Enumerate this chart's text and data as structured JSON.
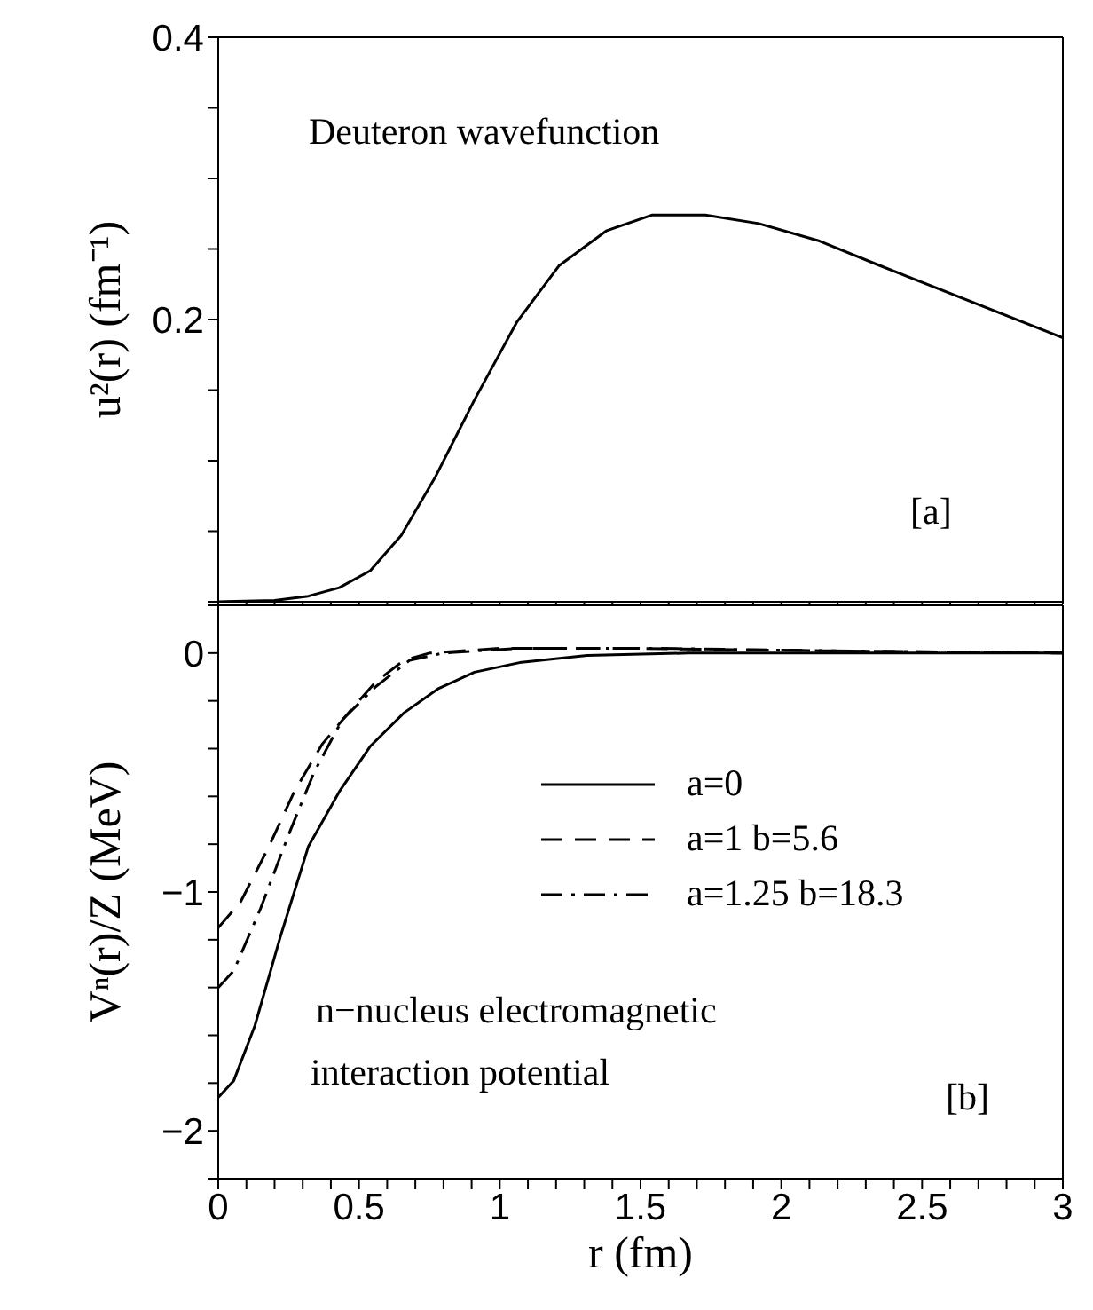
{
  "chart_data": [
    {
      "type": "line",
      "ylabel": "u²(r) (fm⁻¹)",
      "annotations": [
        "Deuteron wavefunction",
        "[a]"
      ],
      "xlim": [
        0,
        3
      ],
      "xticks": [
        0,
        {
          "value": 0.1,
          "label": null
        },
        {
          "value": 0.2,
          "label": null
        },
        {
          "value": 0.3,
          "label": null
        },
        {
          "value": 0.4,
          "label": null
        },
        0.5,
        {
          "value": 0.6,
          "label": null
        },
        {
          "value": 0.7,
          "label": null
        },
        {
          "value": 0.8,
          "label": null
        },
        {
          "value": 0.9,
          "label": null
        },
        1,
        {
          "value": 1.1,
          "label": null
        },
        {
          "value": 1.2,
          "label": null
        },
        {
          "value": 1.3,
          "label": null
        },
        {
          "value": 1.4,
          "label": null
        },
        1.5,
        {
          "value": 1.6,
          "label": null
        },
        {
          "value": 1.7,
          "label": null
        },
        {
          "value": 1.8,
          "label": null
        },
        {
          "value": 1.9,
          "label": null
        },
        2,
        {
          "value": 2.1,
          "label": null
        },
        {
          "value": 2.2,
          "label": null
        },
        {
          "value": 2.3,
          "label": null
        },
        {
          "value": 2.4,
          "label": null
        },
        2.5,
        {
          "value": 2.6,
          "label": null
        },
        {
          "value": 2.7,
          "label": null
        },
        {
          "value": 2.8,
          "label": null
        },
        {
          "value": 2.9,
          "label": null
        },
        3
      ],
      "ylim": [
        0,
        0.4
      ],
      "yticks": [
        {
          "value": 0,
          "label": null
        },
        {
          "value": 0.05,
          "label": null
        },
        {
          "value": 0.1,
          "label": null
        },
        {
          "value": 0.15,
          "label": null
        },
        0.2,
        {
          "value": 0.25,
          "label": null
        },
        {
          "value": 0.3,
          "label": null
        },
        {
          "value": 0.35,
          "label": null
        },
        0.4
      ],
      "tick_labels": "y",
      "grid": false,
      "legend": false,
      "marker": "none",
      "series": [
        {
          "color": "#000000",
          "line_style": "solid",
          "x": [
            0,
            0.2,
            0.32,
            0.43,
            0.54,
            0.65,
            0.77,
            0.91,
            1.06,
            1.21,
            1.38,
            1.54,
            1.73,
            1.92,
            2.13,
            2.34,
            3
          ],
          "values": [
            0,
            0.001,
            0.004,
            0.01,
            0.022,
            0.047,
            0.088,
            0.143,
            0.198,
            0.238,
            0.263,
            0.274,
            0.274,
            0.268,
            0.256,
            0.239,
            0.187
          ]
        }
      ]
    },
    {
      "type": "line",
      "xlabel": "r (fm)",
      "ylabel": "Vⁿ(r)/Z (MeV)",
      "annotations": [
        "n−nucleus electromagnetic",
        "interaction potential",
        "[b]"
      ],
      "xlim": [
        0,
        3
      ],
      "xticks": [
        0,
        {
          "value": 0.1,
          "label": null
        },
        {
          "value": 0.2,
          "label": null
        },
        {
          "value": 0.3,
          "label": null
        },
        {
          "value": 0.4,
          "label": null
        },
        0.5,
        {
          "value": 0.6,
          "label": null
        },
        {
          "value": 0.7,
          "label": null
        },
        {
          "value": 0.8,
          "label": null
        },
        {
          "value": 0.9,
          "label": null
        },
        1,
        {
          "value": 1.1,
          "label": null
        },
        {
          "value": 1.2,
          "label": null
        },
        {
          "value": 1.3,
          "label": null
        },
        {
          "value": 1.4,
          "label": null
        },
        1.5,
        {
          "value": 1.6,
          "label": null
        },
        {
          "value": 1.7,
          "label": null
        },
        {
          "value": 1.8,
          "label": null
        },
        {
          "value": 1.9,
          "label": null
        },
        2,
        {
          "value": 2.1,
          "label": null
        },
        {
          "value": 2.2,
          "label": null
        },
        {
          "value": 2.3,
          "label": null
        },
        {
          "value": 2.4,
          "label": null
        },
        2.5,
        {
          "value": 2.6,
          "label": null
        },
        {
          "value": 2.7,
          "label": null
        },
        {
          "value": 2.8,
          "label": null
        },
        {
          "value": 2.9,
          "label": null
        },
        3
      ],
      "ylim": [
        -2.2,
        0.2
      ],
      "yticks": [
        {
          "value": -2.2,
          "label": null
        },
        -2,
        {
          "value": -1.8,
          "label": null
        },
        {
          "value": -1.6,
          "label": null
        },
        {
          "value": -1.4,
          "label": null
        },
        {
          "value": -1.2,
          "label": null
        },
        -1,
        {
          "value": -0.8,
          "label": null
        },
        {
          "value": -0.6,
          "label": null
        },
        {
          "value": -0.4,
          "label": null
        },
        {
          "value": -0.2,
          "label": null
        },
        0,
        {
          "value": 0.2,
          "label": null
        }
      ],
      "grid": false,
      "legend": "right",
      "marker": "none",
      "series": [
        {
          "name": "a=0",
          "color": "#000000",
          "line_style": "solid",
          "x": [
            0,
            0.055,
            0.13,
            0.22,
            0.32,
            0.43,
            0.54,
            0.66,
            0.78,
            0.91,
            1.07,
            1.31,
            1.67,
            3
          ],
          "values": [
            -1.86,
            -1.79,
            -1.56,
            -1.19,
            -0.81,
            -0.58,
            -0.39,
            -0.25,
            -0.15,
            -0.08,
            -0.04,
            -0.01,
            0,
            0
          ]
        },
        {
          "name": "a=1 b=5.6",
          "color": "#000000",
          "line_style": "dashed",
          "x": [
            0,
            0.08,
            0.18,
            0.27,
            0.37,
            0.47,
            0.56,
            0.66,
            0.75,
            1,
            1.43,
            2.15,
            3
          ],
          "values": [
            -1.15,
            -1.04,
            -0.81,
            -0.58,
            -0.38,
            -0.24,
            -0.12,
            -0.03,
            0,
            0.02,
            0.02,
            0.01,
            0
          ]
        },
        {
          "name": "a=1.25 b=18.3",
          "color": "#000000",
          "line_style": "dashdot",
          "x": [
            0,
            0.055,
            0.15,
            0.25,
            0.34,
            0.44,
            0.56,
            0.68,
            0.8,
            1.07,
            1.55,
            2.15,
            3
          ],
          "values": [
            -1.4,
            -1.33,
            -1.07,
            -0.76,
            -0.5,
            -0.28,
            -0.14,
            -0.03,
            0,
            0.02,
            0.02,
            0.01,
            0
          ]
        }
      ]
    }
  ]
}
